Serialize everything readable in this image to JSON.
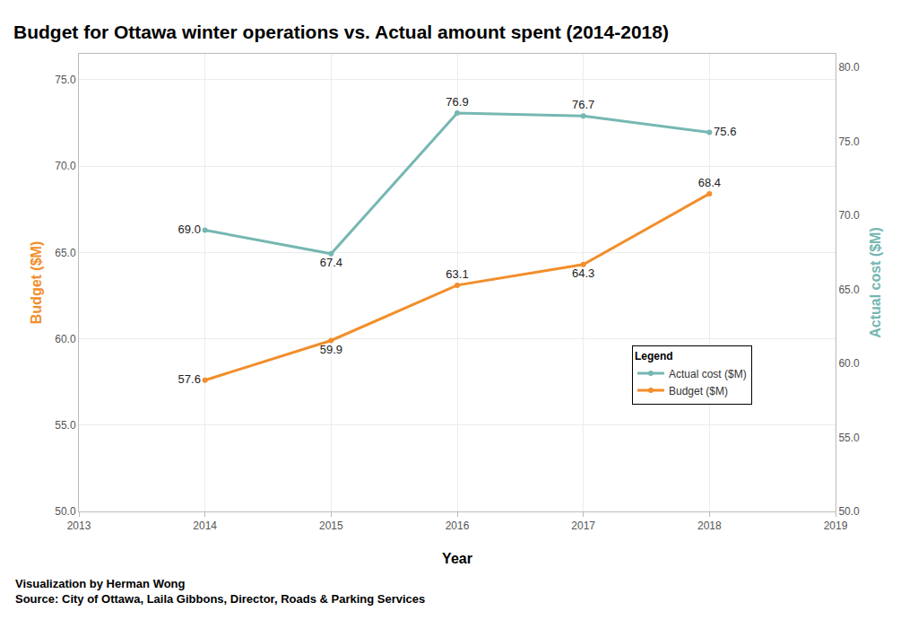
{
  "chart_data": {
    "type": "line",
    "title": "Budget for Ottawa winter operations vs. Actual amount spent (2014-2018)",
    "x_label": "Year",
    "y_label": "Budget ($M)",
    "y2_label": "Actual cost ($M)",
    "legend_title": "Legend",
    "annotations": [
      "Visualization by Herman Wong",
      "Source: City of Ottawa, Laila Gibbons, Director, Roads & Parking Services"
    ],
    "x": [
      2014,
      2015,
      2016,
      2017,
      2018
    ],
    "series": [
      {
        "name": "Actual cost ($M)",
        "color": "#76b7b2",
        "axis": "y2",
        "marker": "circle",
        "line_style": "solid",
        "values": [
          69.0,
          67.4,
          76.9,
          76.7,
          75.6
        ],
        "value_labels": [
          "69.0",
          "67.4",
          "76.9",
          "76.7",
          "75.6"
        ]
      },
      {
        "name": "Budget ($M)",
        "color": "#f28e2b",
        "marker": "circle",
        "line_style": "solid",
        "values": [
          57.6,
          59.9,
          63.1,
          64.3,
          68.4
        ],
        "value_labels": [
          "57.6",
          "59.9",
          "63.1",
          "64.3",
          "68.4"
        ]
      }
    ],
    "xlim": [
      2013,
      2019
    ],
    "xticks": [
      2013,
      2014,
      2015,
      2016,
      2017,
      2018,
      2019
    ],
    "ylim": [
      50,
      76.5
    ],
    "yticks": [
      {
        "value": 50,
        "label": "50.0"
      },
      {
        "value": 55,
        "label": "55.0"
      },
      {
        "value": 60,
        "label": "60.0"
      },
      {
        "value": 65,
        "label": "65.0"
      },
      {
        "value": 70,
        "label": "70.0"
      },
      {
        "value": 75,
        "label": "75.0"
      }
    ],
    "y2lim": [
      50,
      80.9
    ],
    "y2ticks": [
      {
        "value": 50,
        "label": "50.0"
      },
      {
        "value": 55,
        "label": "55.0"
      },
      {
        "value": 60,
        "label": "60.0"
      },
      {
        "value": 65,
        "label": "65.0"
      },
      {
        "value": 70,
        "label": "70.0"
      },
      {
        "value": 75,
        "label": "75.0"
      },
      {
        "value": 80,
        "label": "80.0"
      }
    ],
    "grid": true,
    "legend": "right",
    "data_labels": true
  }
}
